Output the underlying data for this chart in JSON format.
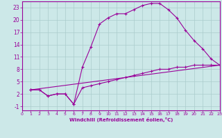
{
  "background_color": "#cce8e8",
  "grid_color": "#aacccc",
  "line_color": "#990099",
  "marker": "+",
  "xlabel": "Windchill (Refroidissement éolien,°C)",
  "xlim": [
    0,
    23
  ],
  "ylim": [
    -2,
    24.5
  ],
  "yticks": [
    -1,
    2,
    5,
    8,
    11,
    14,
    17,
    20,
    23
  ],
  "xticks": [
    0,
    1,
    2,
    3,
    4,
    5,
    6,
    7,
    8,
    9,
    10,
    11,
    12,
    13,
    14,
    15,
    16,
    17,
    18,
    19,
    20,
    21,
    22,
    23
  ],
  "series": [
    {
      "x": [
        1,
        2,
        3,
        4,
        5,
        6,
        7,
        8,
        9,
        10,
        11,
        12,
        13,
        14,
        15,
        16,
        17,
        18,
        19,
        20,
        21,
        22,
        23
      ],
      "y": [
        3,
        3,
        1.5,
        2,
        2,
        -0.5,
        8.5,
        13.5,
        19,
        20.5,
        21.5,
        21.5,
        22.5,
        23.5,
        24,
        24,
        22.5,
        20.5,
        17.5,
        15,
        13,
        10.5,
        9
      ]
    },
    {
      "x": [
        1,
        2,
        3,
        4,
        5,
        6,
        7,
        8,
        9,
        10,
        11,
        12,
        13,
        14,
        15,
        16,
        17,
        18,
        19,
        20,
        21,
        22,
        23
      ],
      "y": [
        3,
        3,
        1.5,
        2,
        2,
        -0.5,
        3.5,
        4.0,
        4.5,
        5.0,
        5.5,
        6.0,
        6.5,
        7.0,
        7.5,
        8.0,
        8.0,
        8.5,
        8.5,
        9.0,
        9.0,
        9.0,
        9.0
      ]
    },
    {
      "x": [
        1,
        23
      ],
      "y": [
        3,
        9
      ]
    }
  ]
}
